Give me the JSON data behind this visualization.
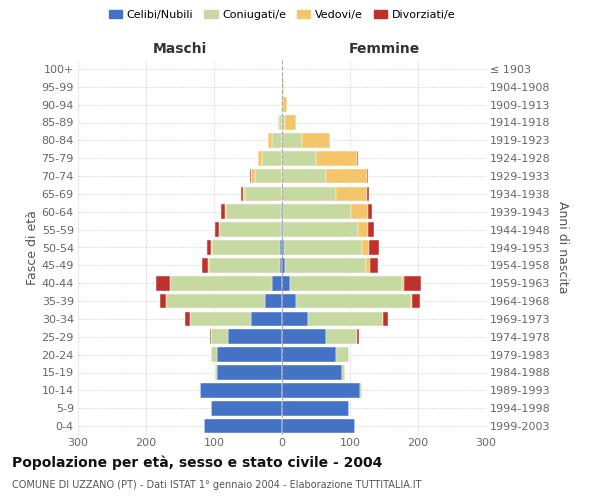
{
  "age_groups": [
    "0-4",
    "5-9",
    "10-14",
    "15-19",
    "20-24",
    "25-29",
    "30-34",
    "35-39",
    "40-44",
    "45-49",
    "50-54",
    "55-59",
    "60-64",
    "65-69",
    "70-74",
    "75-79",
    "80-84",
    "85-89",
    "90-94",
    "95-99",
    "100+"
  ],
  "birth_years": [
    "1999-2003",
    "1994-1998",
    "1989-1993",
    "1984-1988",
    "1979-1983",
    "1974-1978",
    "1969-1973",
    "1964-1968",
    "1959-1963",
    "1954-1958",
    "1949-1953",
    "1944-1948",
    "1939-1943",
    "1934-1938",
    "1929-1933",
    "1924-1928",
    "1919-1923",
    "1914-1918",
    "1909-1913",
    "1904-1908",
    "≤ 1903"
  ],
  "male_celibi": [
    115,
    105,
    120,
    95,
    95,
    80,
    45,
    25,
    15,
    3,
    3,
    2,
    2,
    0,
    0,
    0,
    0,
    0,
    0,
    0,
    0
  ],
  "male_coniugati": [
    0,
    0,
    1,
    3,
    10,
    25,
    90,
    145,
    150,
    105,
    100,
    90,
    80,
    55,
    40,
    30,
    15,
    4,
    1,
    0,
    0
  ],
  "male_vedovi": [
    0,
    0,
    0,
    0,
    0,
    0,
    0,
    0,
    0,
    1,
    1,
    1,
    2,
    3,
    5,
    5,
    5,
    2,
    0,
    0,
    0
  ],
  "male_divorziati": [
    0,
    0,
    0,
    0,
    0,
    1,
    8,
    10,
    20,
    8,
    7,
    5,
    5,
    2,
    2,
    0,
    0,
    0,
    0,
    0,
    0
  ],
  "female_celibi": [
    108,
    98,
    115,
    88,
    80,
    65,
    38,
    20,
    12,
    4,
    3,
    2,
    2,
    0,
    0,
    0,
    0,
    0,
    0,
    0,
    0
  ],
  "female_coniugati": [
    0,
    0,
    2,
    5,
    18,
    45,
    110,
    170,
    165,
    120,
    115,
    110,
    100,
    80,
    65,
    50,
    30,
    5,
    2,
    1,
    0
  ],
  "female_vedovi": [
    0,
    0,
    0,
    0,
    0,
    0,
    0,
    1,
    2,
    5,
    10,
    15,
    25,
    45,
    60,
    60,
    40,
    15,
    5,
    2,
    0
  ],
  "female_divorziati": [
    0,
    0,
    0,
    0,
    1,
    3,
    8,
    12,
    25,
    12,
    15,
    8,
    5,
    3,
    2,
    2,
    0,
    0,
    0,
    0,
    0
  ],
  "color_celibi": "#4472c4",
  "color_coniugati": "#c5d9a0",
  "color_vedovi": "#f4c56a",
  "color_divorziati": "#c0312b",
  "title_bold": "Popolazione per età, sesso e stato civile - 2004",
  "subtitle": "COMUNE DI UZZANO (PT) - Dati ISTAT 1° gennaio 2004 - Elaborazione TUTTITALIA.IT",
  "xlabel_left": "Maschi",
  "xlabel_right": "Femmine",
  "ylabel_left": "Fasce di età",
  "ylabel_right": "Anni di nascita",
  "xlim": 300,
  "bg_color": "#ffffff",
  "grid_color": "#cccccc"
}
